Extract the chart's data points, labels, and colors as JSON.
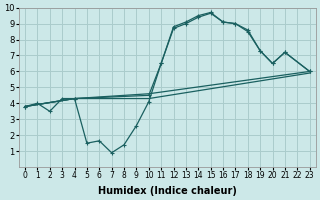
{
  "xlabel": "Humidex (Indice chaleur)",
  "xlim": [
    -0.5,
    23.5
  ],
  "ylim": [
    0,
    10
  ],
  "xticks": [
    0,
    1,
    2,
    3,
    4,
    5,
    6,
    7,
    8,
    9,
    10,
    11,
    12,
    13,
    14,
    15,
    16,
    17,
    18,
    19,
    20,
    21,
    22,
    23
  ],
  "yticks": [
    1,
    2,
    3,
    4,
    5,
    6,
    7,
    8,
    9,
    10
  ],
  "bg_color": "#cce8e8",
  "grid_color": "#aacccc",
  "line_color": "#1a6060",
  "series": [
    {
      "x": [
        0,
        1,
        2,
        3,
        4,
        5,
        6,
        7,
        8,
        9,
        10,
        11,
        12,
        13,
        14,
        15,
        16,
        17,
        18,
        19,
        20,
        21,
        23
      ],
      "y": [
        3.8,
        4.0,
        3.5,
        4.3,
        4.3,
        1.5,
        1.65,
        0.9,
        1.4,
        2.6,
        4.1,
        6.5,
        8.8,
        9.1,
        9.5,
        9.7,
        9.1,
        9.0,
        8.6,
        7.3,
        6.5,
        7.2,
        6.0
      ],
      "has_marker": true
    },
    {
      "x": [
        0,
        4,
        10,
        11,
        12,
        13,
        14,
        15,
        16,
        17,
        18,
        19,
        20,
        21,
        23
      ],
      "y": [
        3.8,
        4.3,
        4.5,
        6.5,
        8.7,
        9.0,
        9.4,
        9.65,
        9.1,
        9.0,
        8.5,
        7.3,
        6.5,
        7.2,
        6.0
      ],
      "has_marker": true
    },
    {
      "x": [
        0,
        4,
        10,
        23
      ],
      "y": [
        3.8,
        4.3,
        4.6,
        6.0
      ],
      "has_marker": false
    },
    {
      "x": [
        0,
        4,
        10,
        23
      ],
      "y": [
        3.8,
        4.3,
        4.3,
        5.9
      ],
      "has_marker": false
    }
  ]
}
